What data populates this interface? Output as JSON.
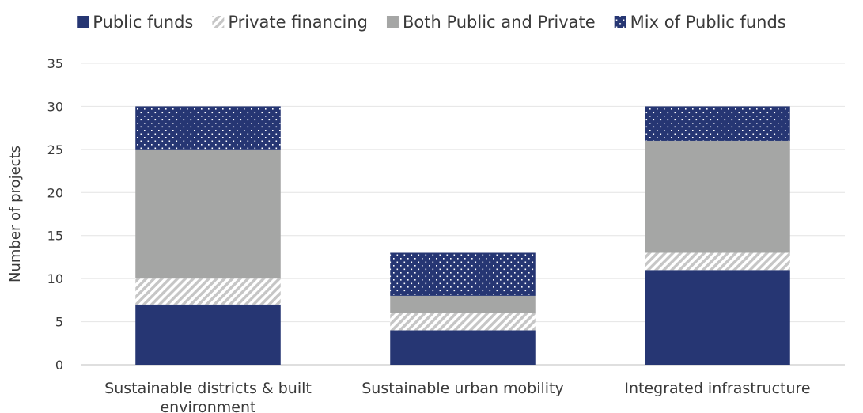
{
  "chart_data": {
    "type": "bar",
    "stacked": true,
    "title": "",
    "xlabel": "",
    "ylabel": "Number of projects",
    "ylim": [
      0,
      35
    ],
    "yticks": [
      0,
      5,
      10,
      15,
      20,
      25,
      30,
      35
    ],
    "grid": "horizontal",
    "legend_position": "top",
    "categories": [
      [
        "Sustainable districts & built",
        "environment"
      ],
      [
        "Sustainable urban mobility"
      ],
      [
        "Integrated infrastructure"
      ]
    ],
    "series": [
      {
        "name": "Public funds",
        "values": [
          7,
          4,
          11
        ],
        "color": "#263673",
        "pattern": "solid"
      },
      {
        "name": "Private financing",
        "values": [
          3,
          2,
          2
        ],
        "color": "#c6c6c6",
        "pattern": "diagonal-stripes"
      },
      {
        "name": "Both Public and Private",
        "values": [
          15,
          2,
          13
        ],
        "color": "#a5a6a5",
        "pattern": "solid"
      },
      {
        "name": "Mix of Public funds",
        "values": [
          5,
          5,
          4
        ],
        "color": "#263673",
        "pattern": "dots"
      }
    ]
  }
}
